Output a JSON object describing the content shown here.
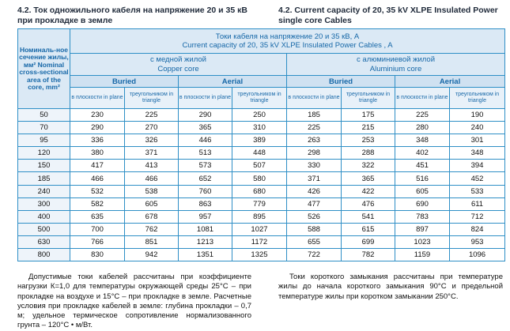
{
  "heading_ru": "4.2. Ток одножильного кабеля на напряжение 20 и 35 кВ при прокладке в земле",
  "heading_en": "4.2. Current capacity of 20, 35 kV XLPE Insulated Power single core Cables",
  "table": {
    "corner_label": "Номиналь-ное сечение жилы, мм² Nominal cross-sectional area of the core, mm²",
    "top_header_ru": "Токи кабеля на напряжение 20 и 35 кВ, А",
    "top_header_en": "Current capacity of 20, 35 kV XLPE Insulated Power Cables , A",
    "copper_ru": "с медной жилой",
    "copper_en": "Copper core",
    "aluminium_ru": "с алюминиевой жилой",
    "aluminium_en": "Aluminium core",
    "buried": "Buried",
    "aerial": "Aerial",
    "in_plane": "в плоскости in plane",
    "in_triangle": "треугольником in triangle",
    "rows": [
      [
        "50",
        "230",
        "225",
        "290",
        "250",
        "185",
        "175",
        "225",
        "190"
      ],
      [
        "70",
        "290",
        "270",
        "365",
        "310",
        "225",
        "215",
        "280",
        "240"
      ],
      [
        "95",
        "336",
        "326",
        "446",
        "389",
        "263",
        "253",
        "348",
        "301"
      ],
      [
        "120",
        "380",
        "371",
        "513",
        "448",
        "298",
        "288",
        "402",
        "348"
      ],
      [
        "150",
        "417",
        "413",
        "573",
        "507",
        "330",
        "322",
        "451",
        "394"
      ],
      [
        "185",
        "466",
        "466",
        "652",
        "580",
        "371",
        "365",
        "516",
        "452"
      ],
      [
        "240",
        "532",
        "538",
        "760",
        "680",
        "426",
        "422",
        "605",
        "533"
      ],
      [
        "300",
        "582",
        "605",
        "863",
        "779",
        "477",
        "476",
        "690",
        "611"
      ],
      [
        "400",
        "635",
        "678",
        "957",
        "895",
        "526",
        "541",
        "783",
        "712"
      ],
      [
        "500",
        "700",
        "762",
        "1081",
        "1027",
        "588",
        "615",
        "897",
        "824"
      ],
      [
        "630",
        "766",
        "851",
        "1213",
        "1172",
        "655",
        "699",
        "1023",
        "953"
      ],
      [
        "800",
        "830",
        "942",
        "1351",
        "1325",
        "722",
        "782",
        "1159",
        "1096"
      ]
    ]
  },
  "note_left": "Допустимые токи кабелей рассчитаны при коэффициенте нагрузки К=1,0 для температуры окружающей среды 25°С – при прокладке на воздухе и 15°С – при прокладке в земле. Расчетные условия при прокладке кабелей в земле: глубина прокладки – 0,7 м; удельное термическое сопротивление нормализованного грунта – 120°С • м/Вт.",
  "note_right": "Токи короткого замыкания рассчитаны при температуре жилы до начала короткого замыкания 90°С и предельной температуре жилы при коротком замыкании 250°С."
}
